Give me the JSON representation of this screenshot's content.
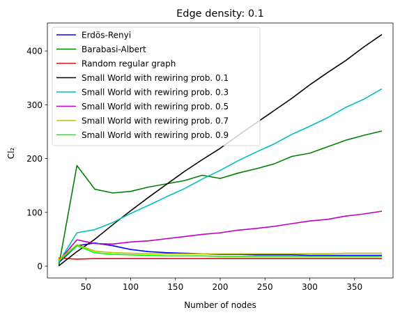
{
  "chart_data": {
    "type": "line",
    "title": "Edge density: 0.1",
    "xlabel": "Number of nodes",
    "ylabel": "Cl₂",
    "xlim": [
      7,
      393
    ],
    "ylim": [
      -22,
      452
    ],
    "xticks": [
      50,
      100,
      150,
      200,
      250,
      300,
      350
    ],
    "yticks": [
      0,
      100,
      200,
      300,
      400
    ],
    "x": [
      20,
      40,
      60,
      80,
      100,
      120,
      140,
      160,
      180,
      200,
      220,
      240,
      260,
      280,
      300,
      320,
      340,
      360,
      380
    ],
    "legend_position": "top-left",
    "grid": false,
    "series": [
      {
        "name": "Erdös-Renyi",
        "color": "#0000ff",
        "values": [
          7,
          38,
          43,
          38,
          31,
          27,
          25,
          24,
          23,
          22,
          22,
          21,
          21,
          21,
          20,
          20,
          20,
          20,
          20
        ]
      },
      {
        "name": "Barabasi-Albert",
        "color": "#008000",
        "values": [
          3,
          187,
          143,
          136,
          139,
          147,
          153,
          159,
          169,
          163,
          173,
          181,
          190,
          204,
          210,
          222,
          234,
          243,
          251
        ]
      },
      {
        "name": "Random regular graph",
        "color": "#ff0000",
        "values": [
          15,
          13,
          14,
          14,
          14,
          14,
          14,
          14,
          14,
          14,
          14,
          14,
          14,
          14,
          14,
          14,
          14,
          14,
          14
        ]
      },
      {
        "name": "Small World with rewiring prob. 0.1",
        "color": "#000000",
        "values": [
          1,
          27,
          50,
          77,
          103,
          128,
          152,
          176,
          198,
          219,
          243,
          266,
          289,
          312,
          337,
          360,
          382,
          407,
          430
        ]
      },
      {
        "name": "Small World with rewiring prob. 0.3",
        "color": "#00bfbf",
        "values": [
          8,
          62,
          68,
          81,
          98,
          113,
          129,
          144,
          162,
          178,
          196,
          212,
          227,
          245,
          260,
          276,
          295,
          310,
          329
        ]
      },
      {
        "name": "Small World with rewiring prob. 0.5",
        "color": "#bf00bf",
        "values": [
          10,
          49,
          42,
          41,
          45,
          47,
          51,
          55,
          59,
          62,
          67,
          70,
          74,
          79,
          84,
          87,
          93,
          97,
          102
        ]
      },
      {
        "name": "Small World with rewiring prob. 0.7",
        "color": "#bfbf00",
        "values": [
          12,
          40,
          28,
          25,
          24,
          23,
          23,
          23,
          23,
          23,
          23,
          23,
          23,
          23,
          23,
          23,
          24,
          24,
          24
        ]
      },
      {
        "name": "Small World with rewiring prob. 0.9",
        "color": "#00ff00",
        "values": [
          10,
          38,
          25,
          22,
          21,
          20,
          19,
          19,
          19,
          18,
          18,
          18,
          18,
          18,
          18,
          18,
          18,
          18,
          18
        ]
      }
    ]
  }
}
